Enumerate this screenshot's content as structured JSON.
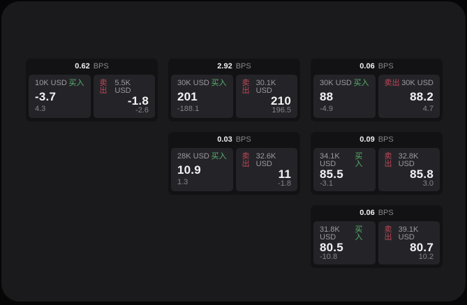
{
  "labels": {
    "unit": "BPS",
    "buy": "买入",
    "sell": "卖出"
  },
  "colors": {
    "outer_bg": "#060607",
    "surface_bg": "#1a1a1c",
    "card_bg": "#121214",
    "tile_bg": "#242428",
    "buy_accent": "#58b26e",
    "sell_accent": "#bf4758",
    "value_text": "#f2f2f4",
    "muted_text": "#9a9aa0"
  },
  "cards": [
    {
      "bps": "0.62",
      "buy": {
        "notional": "10K USD",
        "value": "-3.7",
        "sub": "4.3"
      },
      "sell": {
        "notional": "5.5K USD",
        "value": "-1.8",
        "sub": "-2.6"
      }
    },
    {
      "bps": "2.92",
      "buy": {
        "notional": "30K USD",
        "value": "201",
        "sub": "-188.1"
      },
      "sell": {
        "notional": "30.1K USD",
        "value": "210",
        "sub": "196.5"
      }
    },
    {
      "bps": "0.06",
      "buy": {
        "notional": "30K USD",
        "value": "88",
        "sub": "-4.9"
      },
      "sell": {
        "notional": "30K USD",
        "value": "88.2",
        "sub": "4.7"
      }
    },
    {
      "bps": "0.03",
      "buy": {
        "notional": "28K USD",
        "value": "10.9",
        "sub": "1.3"
      },
      "sell": {
        "notional": "32.6K USD",
        "value": "11",
        "sub": "-1.8"
      }
    },
    {
      "bps": "0.09",
      "buy": {
        "notional": "34.1K USD",
        "value": "85.5",
        "sub": "-3.1"
      },
      "sell": {
        "notional": "32.8K USD",
        "value": "85.8",
        "sub": "3.0"
      }
    },
    {
      "bps": "0.06",
      "buy": {
        "notional": "31.8K USD",
        "value": "80.5",
        "sub": "-10.8"
      },
      "sell": {
        "notional": "39.1K USD",
        "value": "80.7",
        "sub": "10.2"
      }
    }
  ]
}
